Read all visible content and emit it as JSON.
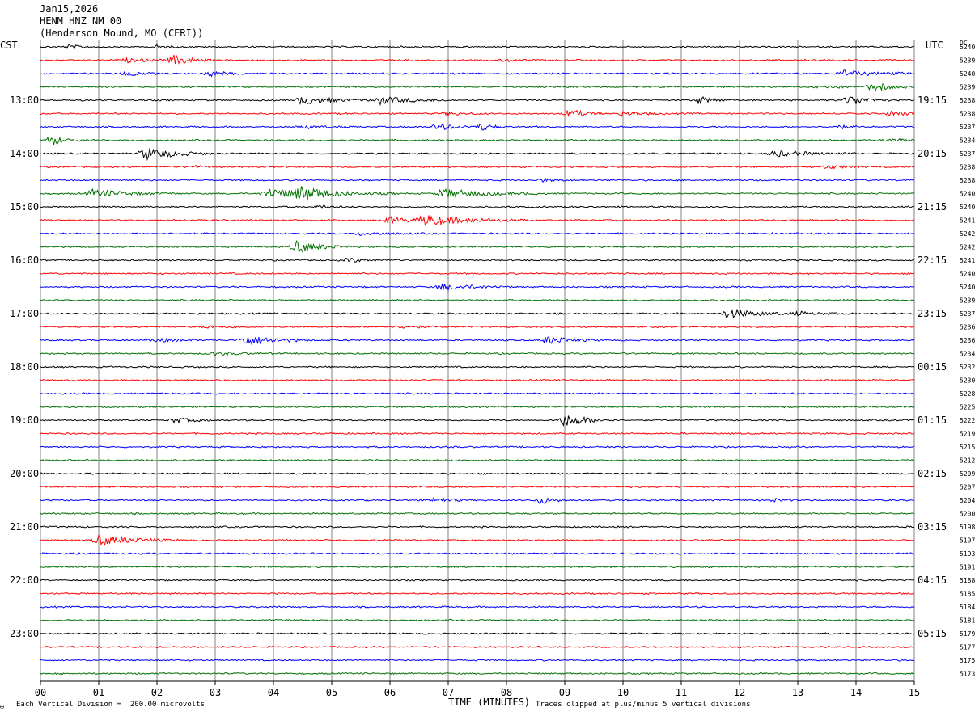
{
  "header": {
    "date": "Jan15,2026",
    "station": "HENM HNZ NM 00",
    "location": "(Henderson Mound, MO (CERI))"
  },
  "left_label": "CST",
  "right_label": "UTC",
  "dc_label": "DC",
  "footer": {
    "scale_note": "Each Vertical Division =  200.00 microvolts",
    "xlabel": "TIME (MINUTES)",
    "clip_note": "Traces clipped at plus/minus 5 vertical divisions",
    "corner_mark": "✠"
  },
  "chart_data": {
    "type": "line",
    "title": "HENM HNZ NM 00",
    "xlabel": "TIME (MINUTES)",
    "ylabel": "",
    "x_ticks": [
      "00",
      "01",
      "02",
      "03",
      "04",
      "05",
      "06",
      "07",
      "08",
      "09",
      "10",
      "11",
      "12",
      "13",
      "14",
      "15"
    ],
    "xlim": [
      0,
      15
    ],
    "trace_colors": [
      "#000000",
      "#ff0000",
      "#0000ff",
      "#007000"
    ],
    "hour_labels_cst": [
      "13:00",
      "14:00",
      "15:00",
      "16:00",
      "17:00",
      "18:00",
      "19:00",
      "20:00",
      "21:00",
      "22:00",
      "23:00"
    ],
    "hour_labels_utc": [
      "19:15",
      "20:15",
      "21:15",
      "22:15",
      "23:15",
      "00:15",
      "01:15",
      "02:15",
      "03:15",
      "04:15",
      "05:15"
    ],
    "dc_offsets": [
      "5240",
      "5239",
      "5240",
      "5239",
      "5238",
      "5238",
      "5237",
      "5234",
      "5237",
      "5238",
      "5238",
      "5240",
      "5240",
      "5241",
      "5242",
      "5242",
      "5241",
      "5240",
      "5240",
      "5239",
      "5237",
      "5236",
      "5236",
      "5234",
      "5232",
      "5230",
      "5228",
      "5225",
      "5222",
      "5219",
      "5215",
      "5212",
      "5209",
      "5207",
      "5204",
      "5200",
      "5198",
      "5197",
      "5193",
      "5191",
      "5188",
      "5185",
      "5184",
      "5181",
      "5179",
      "5177",
      "5175",
      "5173"
    ],
    "events": [
      {
        "trace": 0,
        "t": 0.5,
        "amp": 1.5,
        "dur": 0.6
      },
      {
        "trace": 0,
        "t": 2.0,
        "amp": 1.2,
        "dur": 0.4
      },
      {
        "trace": 1,
        "t": 1.5,
        "amp": 1.5,
        "dur": 0.8
      },
      {
        "trace": 1,
        "t": 2.3,
        "amp": 4,
        "dur": 0.7
      },
      {
        "trace": 1,
        "t": 8.0,
        "amp": 1.2,
        "dur": 0.4
      },
      {
        "trace": 2,
        "t": 1.5,
        "amp": 2,
        "dur": 0.6
      },
      {
        "trace": 2,
        "t": 2.9,
        "amp": 2.5,
        "dur": 0.6
      },
      {
        "trace": 2,
        "t": 13.8,
        "amp": 2.5,
        "dur": 1.0
      },
      {
        "trace": 2,
        "t": 14.6,
        "amp": 2,
        "dur": 0.4
      },
      {
        "trace": 3,
        "t": 13.4,
        "amp": 1.5,
        "dur": 0.8
      },
      {
        "trace": 3,
        "t": 14.3,
        "amp": 4,
        "dur": 0.6
      },
      {
        "trace": 4,
        "t": 4.5,
        "amp": 3.5,
        "dur": 1.2
      },
      {
        "trace": 4,
        "t": 5.8,
        "amp": 3.2,
        "dur": 1.2
      },
      {
        "trace": 4,
        "t": 11.3,
        "amp": 3,
        "dur": 0.6
      },
      {
        "trace": 4,
        "t": 13.9,
        "amp": 4.5,
        "dur": 0.7
      },
      {
        "trace": 5,
        "t": 7.0,
        "amp": 1.2,
        "dur": 0.8
      },
      {
        "trace": 5,
        "t": 9.1,
        "amp": 3.5,
        "dur": 0.6
      },
      {
        "trace": 5,
        "t": 10.0,
        "amp": 2,
        "dur": 0.8
      },
      {
        "trace": 5,
        "t": 14.6,
        "amp": 2,
        "dur": 0.8
      },
      {
        "trace": 6,
        "t": 4.5,
        "amp": 1.2,
        "dur": 1.0
      },
      {
        "trace": 6,
        "t": 6.8,
        "amp": 2.5,
        "dur": 0.8
      },
      {
        "trace": 6,
        "t": 7.6,
        "amp": 3,
        "dur": 0.4
      },
      {
        "trace": 6,
        "t": 13.7,
        "amp": 1.5,
        "dur": 0.4
      },
      {
        "trace": 7,
        "t": 0.2,
        "amp": 4,
        "dur": 0.5
      },
      {
        "trace": 7,
        "t": 14.6,
        "amp": 1.5,
        "dur": 0.6
      },
      {
        "trace": 8,
        "t": 1.8,
        "amp": 5,
        "dur": 1.2
      },
      {
        "trace": 8,
        "t": 12.6,
        "amp": 2.5,
        "dur": 1.4
      },
      {
        "trace": 9,
        "t": 2.6,
        "amp": 1.2,
        "dur": 0.5
      },
      {
        "trace": 9,
        "t": 13.5,
        "amp": 1.5,
        "dur": 0.8
      },
      {
        "trace": 10,
        "t": 8.6,
        "amp": 1.2,
        "dur": 0.6
      },
      {
        "trace": 11,
        "t": 0.9,
        "amp": 3,
        "dur": 1.5
      },
      {
        "trace": 11,
        "t": 3.9,
        "amp": 4,
        "dur": 2.2
      },
      {
        "trace": 11,
        "t": 4.5,
        "amp": 5,
        "dur": 0.8
      },
      {
        "trace": 11,
        "t": 6.9,
        "amp": 3.5,
        "dur": 1.8
      },
      {
        "trace": 12,
        "t": 4.8,
        "amp": 1.2,
        "dur": 0.6
      },
      {
        "trace": 13,
        "t": 6.6,
        "amp": 4,
        "dur": 1.8
      },
      {
        "trace": 13,
        "t": 6.0,
        "amp": 2.5,
        "dur": 1.0
      },
      {
        "trace": 14,
        "t": 5.5,
        "amp": 1.2,
        "dur": 1.2
      },
      {
        "trace": 15,
        "t": 4.4,
        "amp": 5,
        "dur": 0.9
      },
      {
        "trace": 16,
        "t": 5.3,
        "amp": 1.5,
        "dur": 0.8
      },
      {
        "trace": 18,
        "t": 6.9,
        "amp": 2.5,
        "dur": 1.2
      },
      {
        "trace": 20,
        "t": 11.8,
        "amp": 3.5,
        "dur": 1.3
      },
      {
        "trace": 20,
        "t": 13.0,
        "amp": 1.2,
        "dur": 1.0
      },
      {
        "trace": 21,
        "t": 2.9,
        "amp": 1.2,
        "dur": 0.8
      },
      {
        "trace": 21,
        "t": 6.2,
        "amp": 1.2,
        "dur": 0.8
      },
      {
        "trace": 22,
        "t": 2.0,
        "amp": 1.5,
        "dur": 0.8
      },
      {
        "trace": 22,
        "t": 3.5,
        "amp": 4,
        "dur": 1.2
      },
      {
        "trace": 22,
        "t": 8.7,
        "amp": 3,
        "dur": 1.0
      },
      {
        "trace": 23,
        "t": 3.0,
        "amp": 1.2,
        "dur": 1.0
      },
      {
        "trace": 28,
        "t": 2.3,
        "amp": 2,
        "dur": 0.8
      },
      {
        "trace": 28,
        "t": 9.0,
        "amp": 5,
        "dur": 0.9
      },
      {
        "trace": 34,
        "t": 6.8,
        "amp": 2.5,
        "dur": 0.5
      },
      {
        "trace": 34,
        "t": 8.6,
        "amp": 3,
        "dur": 0.5
      },
      {
        "trace": 34,
        "t": 12.6,
        "amp": 1.2,
        "dur": 0.4
      },
      {
        "trace": 37,
        "t": 1.0,
        "amp": 4,
        "dur": 1.4
      }
    ]
  }
}
